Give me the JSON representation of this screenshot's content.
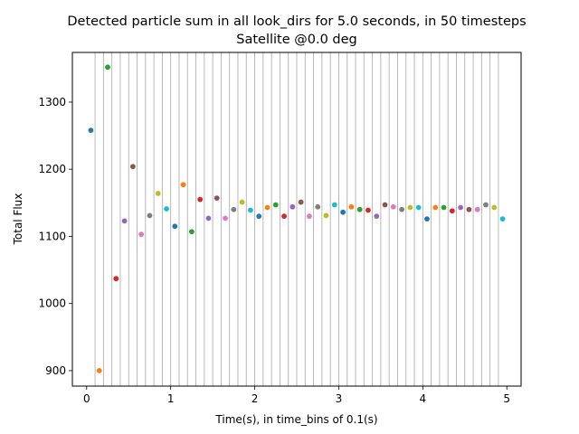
{
  "chart_data": {
    "type": "scatter",
    "title": "Detected particle sum in all look_dirs for 5.0 seconds, in 50 timesteps",
    "subtitle": "Satellite @0.0 deg",
    "xlabel": "Time(s), in time_bins of 0.1(s)",
    "ylabel": "Total Flux",
    "xlim": [
      -0.17,
      5.17
    ],
    "ylim": [
      877,
      1374
    ],
    "xticks": [
      0,
      1,
      2,
      3,
      4,
      5
    ],
    "yticks": [
      900,
      1000,
      1100,
      1200,
      1300
    ],
    "grid": "vertical lines at every time bin edge",
    "bin_edges": [
      0.1,
      0.2,
      0.3,
      0.4,
      0.5,
      0.6,
      0.7,
      0.8,
      0.9,
      1.0,
      1.1,
      1.2,
      1.3,
      1.4,
      1.5,
      1.6,
      1.7,
      1.8,
      1.9,
      2.0,
      2.1,
      2.2,
      2.3,
      2.4,
      2.5,
      2.6,
      2.7,
      2.8,
      2.9,
      3.0,
      3.1,
      3.2,
      3.3,
      3.4,
      3.5,
      3.6,
      3.7,
      3.8,
      3.9,
      4.0,
      4.1,
      4.2,
      4.3,
      4.4,
      4.5,
      4.6,
      4.7,
      4.8,
      4.9
    ],
    "x": [
      0.05,
      0.15,
      0.25,
      0.35,
      0.45,
      0.55,
      0.65,
      0.75,
      0.85,
      0.95,
      1.05,
      1.15,
      1.25,
      1.35,
      1.45,
      1.55,
      1.65,
      1.75,
      1.85,
      1.95,
      2.05,
      2.15,
      2.25,
      2.35,
      2.45,
      2.55,
      2.65,
      2.75,
      2.85,
      2.95,
      3.05,
      3.15,
      3.25,
      3.35,
      3.45,
      3.55,
      3.65,
      3.75,
      3.85,
      3.95,
      4.05,
      4.15,
      4.25,
      4.35,
      4.45,
      4.55,
      4.65,
      4.75,
      4.85,
      4.95
    ],
    "y": [
      1258,
      900,
      1352,
      1037,
      1123,
      1204,
      1103,
      1131,
      1164,
      1141,
      1115,
      1177,
      1107,
      1155,
      1127,
      1157,
      1127,
      1140,
      1151,
      1139,
      1130,
      1143,
      1147,
      1130,
      1144,
      1151,
      1130,
      1144,
      1131,
      1147,
      1136,
      1144,
      1140,
      1139,
      1130,
      1147,
      1144,
      1140,
      1143,
      1143,
      1126,
      1143,
      1143,
      1138,
      1143,
      1140,
      1140,
      1147,
      1143,
      1126
    ],
    "colors": [
      "#1f77b4",
      "#ff7f0e",
      "#2ca02c",
      "#d62728",
      "#9467bd",
      "#8c564b",
      "#e377c2",
      "#7f7f7f",
      "#bcbd22",
      "#17becf"
    ]
  }
}
